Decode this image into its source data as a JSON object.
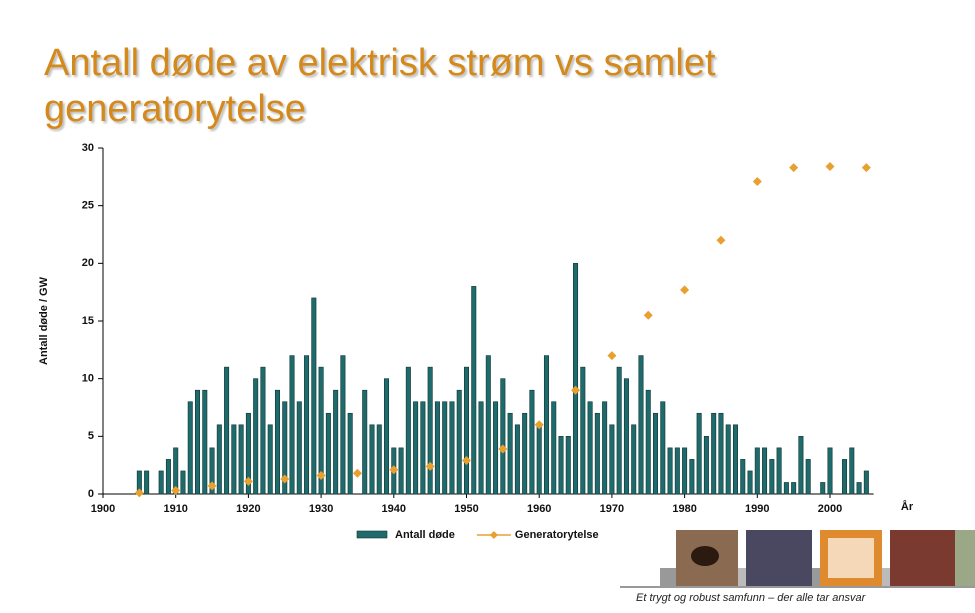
{
  "title": "Antall døde av elektrisk strøm vs samlet generatorytelse",
  "footer": "Et trygt og robust samfunn – der alle tar ansvar",
  "chart_data": {
    "type": "bar",
    "y_label": "Antall døde / GW",
    "x_label": "År",
    "xlim": [
      1900,
      2006
    ],
    "xticks": [
      1900,
      1910,
      1920,
      1930,
      1940,
      1950,
      1960,
      1970,
      1980,
      1990,
      2000
    ],
    "ylim": [
      0,
      30
    ],
    "yticks": [
      0,
      5,
      10,
      15,
      20,
      25,
      30
    ],
    "series": [
      {
        "name": "Antall døde",
        "type": "bar",
        "color": "#1f6b6b",
        "x": [
          1905,
          1906,
          1907,
          1908,
          1909,
          1910,
          1911,
          1912,
          1913,
          1914,
          1915,
          1916,
          1917,
          1918,
          1919,
          1920,
          1921,
          1922,
          1923,
          1924,
          1925,
          1926,
          1927,
          1928,
          1929,
          1930,
          1931,
          1932,
          1933,
          1934,
          1935,
          1936,
          1937,
          1938,
          1939,
          1940,
          1941,
          1942,
          1943,
          1944,
          1945,
          1946,
          1947,
          1948,
          1949,
          1950,
          1951,
          1952,
          1953,
          1954,
          1955,
          1956,
          1957,
          1958,
          1959,
          1960,
          1961,
          1962,
          1963,
          1964,
          1965,
          1966,
          1967,
          1968,
          1969,
          1970,
          1971,
          1972,
          1973,
          1974,
          1975,
          1976,
          1977,
          1978,
          1979,
          1980,
          1981,
          1982,
          1983,
          1984,
          1985,
          1986,
          1987,
          1988,
          1989,
          1990,
          1991,
          1992,
          1993,
          1994,
          1995,
          1996,
          1997,
          1998,
          1999,
          2000,
          2001,
          2002,
          2003,
          2004,
          2005
        ],
        "values": [
          2,
          2,
          0,
          2,
          3,
          4,
          2,
          8,
          9,
          9,
          4,
          6,
          11,
          6,
          6,
          7,
          10,
          11,
          6,
          9,
          8,
          12,
          8,
          12,
          17,
          11,
          7,
          9,
          12,
          7,
          0,
          9,
          6,
          6,
          10,
          4,
          4,
          11,
          8,
          8,
          11,
          8,
          8,
          8,
          9,
          11,
          18,
          8,
          12,
          8,
          10,
          7,
          6,
          7,
          9,
          6,
          12,
          8,
          5,
          5,
          20,
          11,
          8,
          7,
          8,
          6,
          11,
          10,
          6,
          12,
          9,
          7,
          8,
          4,
          4,
          4,
          3,
          7,
          5,
          7,
          7,
          6,
          6,
          3,
          2,
          4,
          4,
          3,
          4,
          1,
          1,
          5,
          3,
          0,
          1,
          4,
          0,
          3,
          4,
          1,
          2
        ]
      },
      {
        "name": "Generatorytelse",
        "type": "scatter",
        "color": "#e8a030",
        "x": [
          1905,
          1910,
          1915,
          1920,
          1925,
          1930,
          1935,
          1940,
          1945,
          1950,
          1955,
          1960,
          1965,
          1970,
          1975,
          1980,
          1985,
          1990,
          1995,
          2000,
          2005
        ],
        "values": [
          0.1,
          0.3,
          0.7,
          1.1,
          1.3,
          1.6,
          1.8,
          2.1,
          2.4,
          2.9,
          3.9,
          6,
          9,
          12,
          15.5,
          17.7,
          22,
          27.1,
          28.3,
          28.4,
          28.3
        ]
      }
    ]
  }
}
